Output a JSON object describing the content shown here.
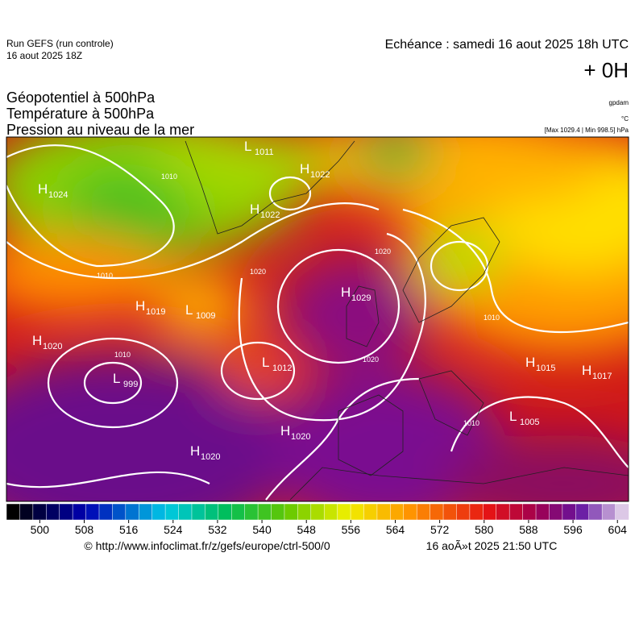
{
  "header": {
    "run": "Run GEFS (run controle)",
    "run_date": "16 aout 2025 18Z",
    "valid": "Echéance : samedi 16 aout 2025 18h UTC",
    "lead": "+ 0H"
  },
  "fields": [
    "Géopotentiel à 500hPa",
    "Température à 500hPa",
    "Pression au niveau de la mer"
  ],
  "units": {
    "geopotential": "gpdam",
    "temperature": "°C",
    "pressure": "[Max 1029.4 | Min 998.5] hPa"
  },
  "centers": [
    {
      "letter": "H",
      "value": 1024
    },
    {
      "letter": "L",
      "value": 1011
    },
    {
      "letter": "H",
      "value": 1022
    },
    {
      "letter": "H",
      "value": 1022
    },
    {
      "letter": "H",
      "value": 1019
    },
    {
      "letter": "L",
      "value": 1009
    },
    {
      "letter": "H",
      "value": 1020
    },
    {
      "letter": "L",
      "value": 999
    },
    {
      "letter": "L",
      "value": 1012
    },
    {
      "letter": "H",
      "value": 1029
    },
    {
      "letter": "H",
      "value": 1020
    },
    {
      "letter": "H",
      "value": 1020
    },
    {
      "letter": "H",
      "value": 1015
    },
    {
      "letter": "H",
      "value": 1017
    },
    {
      "letter": "L",
      "value": 1005
    }
  ],
  "isobar_labels": [
    1010,
    1020,
    1020,
    1010,
    1010,
    1020,
    1010,
    1010
  ],
  "colorbar": {
    "range": [
      494,
      606
    ],
    "ticks": [
      500,
      508,
      516,
      524,
      532,
      540,
      548,
      556,
      564,
      572,
      580,
      588,
      596,
      604
    ]
  },
  "footer": {
    "source": "© http://www.infoclimat.fr/z/gefs/europe/ctrl-500/0",
    "generated": "16 aoÃ»t 2025 21:50 UTC"
  }
}
